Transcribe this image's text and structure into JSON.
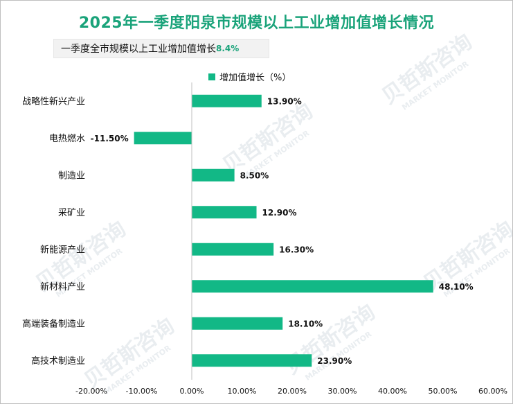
{
  "title": "2025年一季度阳泉市规模以上工业增加值增长情况",
  "subtitle": {
    "label": "一季度全市规模以上工业增加值增长",
    "value": "8.4%"
  },
  "colors": {
    "bar": "#12b886",
    "title": "#1aa37a",
    "axis": "#bfbfbf"
  },
  "chart_data": {
    "type": "bar",
    "orientation": "horizontal",
    "categories": [
      "战略性新兴产业",
      "电热燃水",
      "制造业",
      "采矿业",
      "新能源产业",
      "新材料产业",
      "高端装备制造业",
      "高技术制造业"
    ],
    "series": [
      {
        "name": "增加值增长（%）",
        "values": [
          13.9,
          -11.5,
          8.5,
          12.9,
          16.3,
          48.1,
          18.1,
          23.9
        ],
        "labels": [
          "13.90%",
          "-11.50%",
          "8.50%",
          "12.90%",
          "16.30%",
          "48.10%",
          "18.10%",
          "23.90%"
        ]
      }
    ],
    "xlim": [
      -20,
      60
    ],
    "xticks": [
      -20,
      -10,
      0,
      10,
      20,
      30,
      40,
      50,
      60
    ],
    "xtick_labels": [
      "-20.00%",
      "-10.00%",
      "0.00%",
      "10.00%",
      "20.00%",
      "30.00%",
      "40.00%",
      "50.00%",
      "60.00%"
    ],
    "grid": false,
    "legend_position": "top"
  },
  "watermark": {
    "text": "贝哲斯咨询",
    "subtext": "MARKET MONITOR"
  }
}
